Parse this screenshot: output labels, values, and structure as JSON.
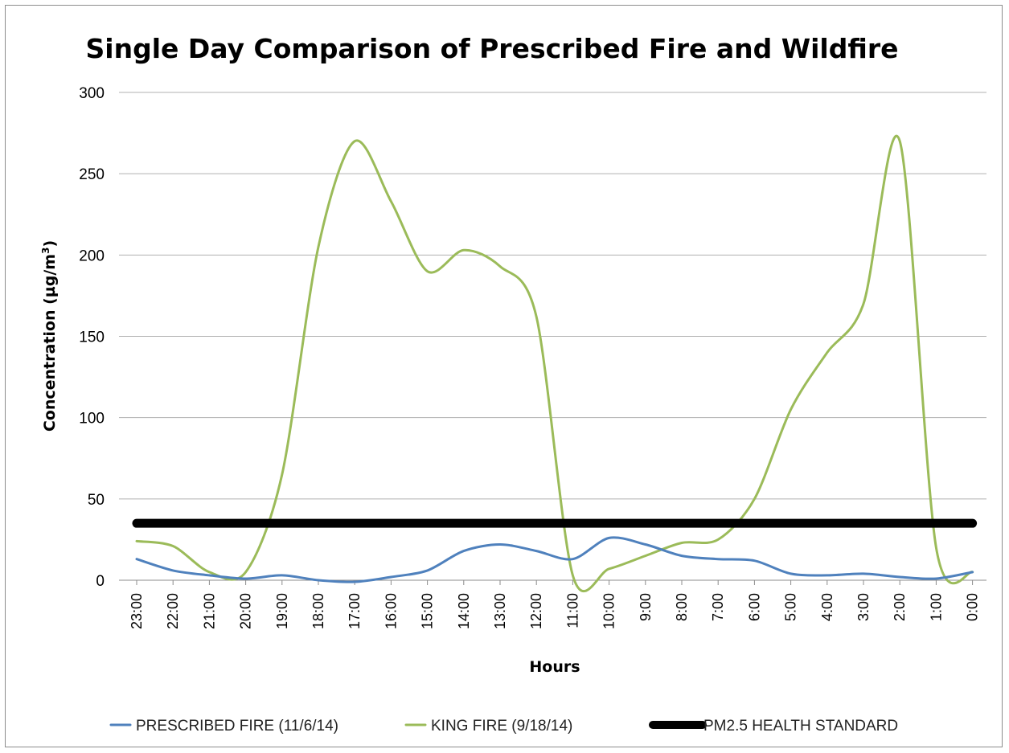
{
  "chart_data": {
    "type": "line",
    "title": "Single Day Comparison of Prescribed Fire and Wildfire",
    "xlabel": "Hours",
    "ylabel_prefix": "Concentration (µg/m",
    "ylabel_sup": "3",
    "ylabel_suffix": ")",
    "ylim": [
      0,
      300
    ],
    "yticks": [
      0,
      50,
      100,
      150,
      200,
      250,
      300
    ],
    "grid": true,
    "legend_position": "bottom",
    "categories": [
      "23:00",
      "22:00",
      "21:00",
      "20:00",
      "19:00",
      "18:00",
      "17:00",
      "16:00",
      "15:00",
      "14:00",
      "13:00",
      "12:00",
      "11:00",
      "10:00",
      "9:00",
      "8:00",
      "7:00",
      "6:00",
      "5:00",
      "4:00",
      "3:00",
      "2:00",
      "1:00",
      "0:00"
    ],
    "series": [
      {
        "name": "PRESCRIBED FIRE (11/6/14)",
        "color": "#4f81bd",
        "width": 3,
        "values": [
          13,
          6,
          3,
          1,
          3,
          0,
          -1,
          2,
          6,
          18,
          22,
          18,
          13,
          26,
          22,
          15,
          13,
          12,
          4,
          3,
          4,
          2,
          1,
          5
        ]
      },
      {
        "name": "KING FIRE (9/18/14)",
        "color": "#9bbb59",
        "width": 3,
        "values": [
          24,
          21,
          5,
          5,
          65,
          205,
          270,
          233,
          190,
          203,
          193,
          162,
          3,
          7,
          15,
          23,
          25,
          50,
          105,
          140,
          170,
          270,
          20,
          5
        ]
      },
      {
        "name": "PM2.5 HEALTH STANDARD",
        "color": "#000000",
        "width": 11,
        "values": [
          35,
          35,
          35,
          35,
          35,
          35,
          35,
          35,
          35,
          35,
          35,
          35,
          35,
          35,
          35,
          35,
          35,
          35,
          35,
          35,
          35,
          35,
          35,
          35
        ]
      }
    ]
  }
}
